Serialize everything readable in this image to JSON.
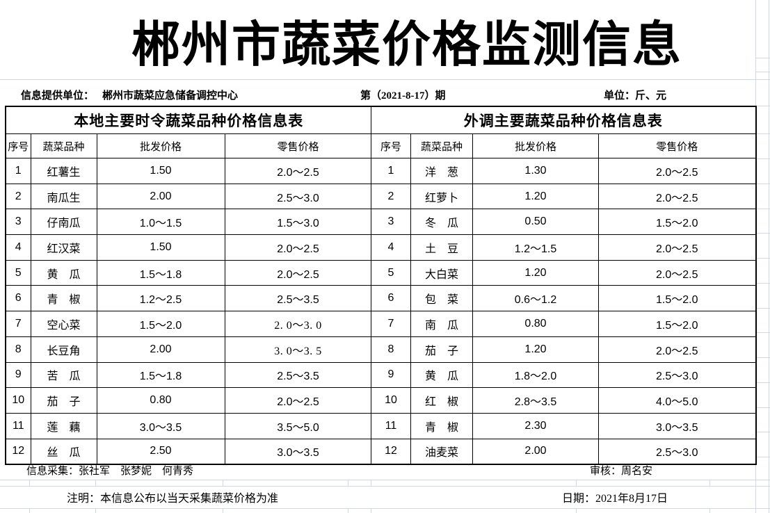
{
  "page": {
    "title": "郴州市蔬菜价格监测信息"
  },
  "info_bar": {
    "provider_label": "信息提供单位：",
    "provider_name": "郴州市蔬菜应急储备调控中心",
    "issue": "第（2021-8-17）期",
    "unit": "单位：斤、元"
  },
  "tables": [
    {
      "title": "本地主要时令蔬菜品种价格信息表",
      "columns": [
        "序号",
        "蔬菜品种",
        "批发价格",
        "零售价格"
      ],
      "rows": [
        [
          "1",
          "红薯生",
          "1.50",
          "2.0～2.5"
        ],
        [
          "2",
          "南瓜生",
          "2.00",
          "2.5～3.0"
        ],
        [
          "3",
          "仔南瓜",
          "1.0～1.5",
          "1.5～3.0"
        ],
        [
          "4",
          "红汉菜",
          "1.50",
          "2.0～2.5"
        ],
        [
          "5",
          "黄　瓜",
          "1.5～1.8",
          "2.0～2.5"
        ],
        [
          "6",
          "青　椒",
          "1.2～2.5",
          "2.5～3.5"
        ],
        [
          "7",
          "空心菜",
          "1.5～2.0",
          "2. 0～3. 0"
        ],
        [
          "8",
          "长豆角",
          "2.00",
          "3. 0～3. 5"
        ],
        [
          "9",
          "苦　瓜",
          "1.5～1.8",
          "2.5～3.5"
        ],
        [
          "10",
          "茄　子",
          "0.80",
          "2.0～2.5"
        ],
        [
          "11",
          "莲　藕",
          "3.0～3.5",
          "3.5～5.0"
        ],
        [
          "12",
          "丝　瓜",
          "2.50",
          "3.0～3.5"
        ]
      ]
    },
    {
      "title": "外调主要蔬菜品种价格信息表",
      "columns": [
        "序号",
        "蔬菜品种",
        "批发价格",
        "零售价格"
      ],
      "rows": [
        [
          "1",
          "洋　葱",
          "1.30",
          "2.0～2.5"
        ],
        [
          "2",
          "红萝卜",
          "1.20",
          "2.0～2.5"
        ],
        [
          "3",
          "冬　瓜",
          "0.50",
          "1.5～2.0"
        ],
        [
          "4",
          "土　豆",
          "1.2～1.5",
          "2.0～2.5"
        ],
        [
          "5",
          "大白菜",
          "1.20",
          "2.0～2.5"
        ],
        [
          "6",
          "包　菜",
          "0.6～1.2",
          "1.5～2.0"
        ],
        [
          "7",
          "南　瓜",
          "0.80",
          "1.5～2.0"
        ],
        [
          "8",
          "茄　子",
          "1.20",
          "2.0～2.5"
        ],
        [
          "9",
          "黄　瓜",
          "1.8～2.0",
          "2.5～3.0"
        ],
        [
          "10",
          "红　椒",
          "2.8～3.5",
          "4.0～5.0"
        ],
        [
          "11",
          "青　椒",
          "2.30",
          "3.0～3.5"
        ],
        [
          "12",
          "油麦菜",
          "2.00",
          "2.5～3.0"
        ]
      ]
    }
  ],
  "footer": {
    "collectors": "信息采集：张社军　张梦妮　何青秀",
    "reviewer": "审核：周名安",
    "note": "注明：本信息公布以当天采集蔬菜价格为准",
    "date": "日期：2021年8月17日"
  },
  "colors": {
    "background": "#ffffff",
    "text": "#000000",
    "table_border": "#000000",
    "gridline": "#cfd8e4"
  }
}
